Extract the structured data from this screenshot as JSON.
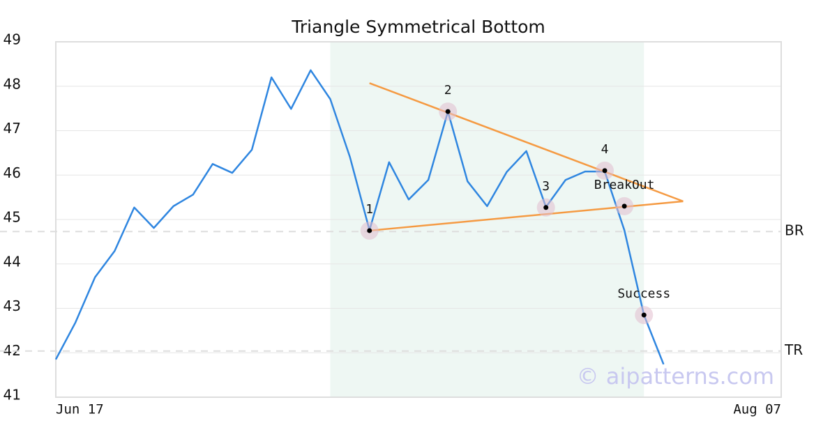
{
  "chart_data": {
    "type": "line",
    "title": "Triangle Symmetrical Bottom",
    "x": [
      0,
      1,
      2,
      3,
      4,
      5,
      6,
      7,
      8,
      9,
      10,
      11,
      12,
      13,
      14,
      15,
      16,
      17,
      18,
      19,
      20,
      21,
      22,
      23,
      24,
      25,
      26,
      27,
      28,
      29,
      30,
      31
    ],
    "series": [
      {
        "color": "#2f86e0",
        "values": [
          41.85,
          42.68,
          43.7,
          44.29,
          45.27,
          44.81,
          45.3,
          45.56,
          46.25,
          46.05,
          46.57,
          48.2,
          47.49,
          48.36,
          47.71,
          46.41,
          44.76,
          46.29,
          45.45,
          45.89,
          47.43,
          45.86,
          45.3,
          46.07,
          46.54,
          45.28,
          45.89,
          46.08,
          46.08,
          44.76,
          42.85,
          41.74
        ]
      }
    ],
    "xlim": [
      0,
      37
    ],
    "xticks": [
      {
        "value": 0,
        "label": "Jun 17"
      },
      {
        "value": 37,
        "label": "Aug 07"
      }
    ],
    "ylim": [
      41,
      49
    ],
    "yticks": [
      41,
      42,
      43,
      44,
      45,
      46,
      47,
      48,
      49
    ],
    "grid": true,
    "shaded": {
      "x": [
        14,
        30
      ],
      "color": "#eef7f3"
    },
    "trendlines": [
      {
        "color": "#f59a42",
        "x": [
          16,
          32
        ],
        "y": [
          48.07,
          45.41
        ]
      },
      {
        "color": "#f59a42",
        "x": [
          16,
          32
        ],
        "y": [
          44.75,
          45.41
        ]
      }
    ],
    "pattern_points": [
      {
        "label": "1",
        "x": 16,
        "y": 44.75
      },
      {
        "label": "2",
        "x": 20,
        "y": 47.43
      },
      {
        "label": "3",
        "x": 25,
        "y": 45.27
      },
      {
        "label": "4",
        "x": 28,
        "y": 46.1
      },
      {
        "label": "BreakOut",
        "x": 29,
        "y": 45.3
      },
      {
        "label": "Success",
        "x": 30,
        "y": 42.85
      }
    ],
    "hlines": [
      {
        "label": "BR",
        "value": 44.73
      },
      {
        "label": "TR",
        "value": 42.04
      }
    ],
    "watermark": "© aipatterns.com"
  }
}
